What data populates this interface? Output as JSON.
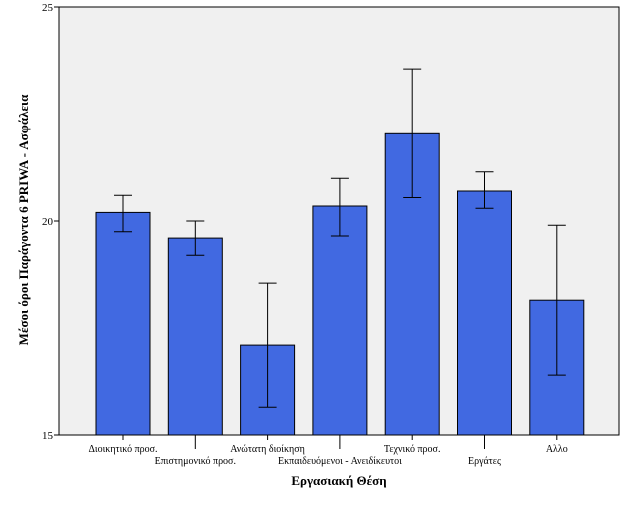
{
  "chart_data": {
    "type": "bar",
    "title": "",
    "xlabel": "Εργασιακή Θέση",
    "ylabel": "Μέσοι όροι Παράγοντα 6 PRIWA - Ασφάλεια",
    "ylim": [
      15,
      25
    ],
    "yticks": [
      "15",
      "20",
      "25"
    ],
    "ytick_values": [
      15,
      20,
      25
    ],
    "grid": false,
    "legend": "none",
    "bar_color": "#4169E1",
    "plot_background": "#F0F0F0",
    "categories": [
      "Διοικητικό προσ.",
      "Επιστημονικό προσ.",
      "Ανώτατη διοίκηση",
      "Εκπαιδευόμενοι - Ανειδίκευτοι",
      "Τεχνικό προσ.",
      "Εργάτες",
      "Αλλο"
    ],
    "values": [
      20.2,
      19.6,
      17.1,
      20.35,
      22.05,
      20.7,
      18.15
    ],
    "error_low": [
      19.75,
      19.2,
      15.65,
      19.65,
      20.55,
      20.3,
      16.4
    ],
    "error_high": [
      20.6,
      20.0,
      18.55,
      21.0,
      23.55,
      21.15,
      19.9
    ]
  }
}
